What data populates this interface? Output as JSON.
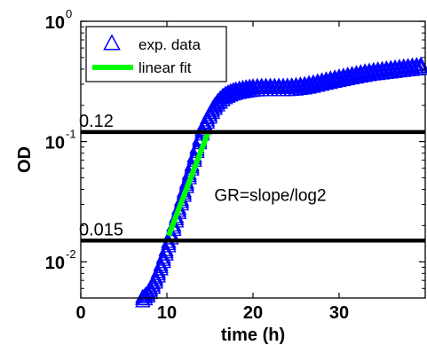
{
  "chart_data": {
    "type": "scatter",
    "title": "",
    "xlabel": "time (h)",
    "ylabel": "OD",
    "xlim": [
      0,
      40
    ],
    "ylim": [
      0.005,
      1
    ],
    "y_scale": "log",
    "grid": false,
    "legend_position": "top-left",
    "x_ticks": [
      {
        "value": 0,
        "label": "0"
      },
      {
        "value": 10,
        "label": "10"
      },
      {
        "value": 20,
        "label": "20"
      },
      {
        "value": 30,
        "label": "30"
      }
    ],
    "y_ticks": [
      {
        "value": 0.01,
        "base": "10",
        "exp": "-2"
      },
      {
        "value": 0.1,
        "base": "10",
        "exp": "-1"
      },
      {
        "value": 1,
        "base": "10",
        "exp": "0"
      }
    ],
    "series": [
      {
        "name": "exp. data",
        "marker": "triangle-open",
        "color": "#0000ff",
        "x": [
          7.2,
          7.5,
          7.8,
          8.1,
          8.4,
          8.7,
          9.0,
          9.3,
          9.6,
          9.9,
          10.2,
          10.5,
          10.8,
          11.1,
          11.4,
          11.7,
          12.0,
          12.3,
          12.6,
          12.9,
          13.2,
          13.5,
          13.8,
          14.1,
          14.4,
          14.7,
          15.0,
          15.3,
          15.6,
          15.9,
          16.2,
          16.5,
          16.8,
          17.1,
          17.4,
          17.7,
          18.0,
          18.4,
          18.8,
          19.2,
          19.6,
          20.0,
          20.5,
          21.0,
          21.5,
          22.0,
          22.5,
          23.0,
          23.5,
          24.0,
          24.5,
          25.0,
          25.5,
          26.0,
          26.5,
          27.0,
          27.5,
          28.0,
          28.5,
          29.0,
          29.5,
          30.0,
          30.5,
          31.0,
          31.5,
          32.0,
          32.5,
          33.0,
          33.5,
          34.0,
          34.5,
          35.0,
          35.5,
          36.0,
          36.5,
          37.0,
          37.5,
          38.0,
          38.5,
          39.0,
          39.5
        ],
        "y": [
          0.0051,
          0.0053,
          0.0056,
          0.006,
          0.0066,
          0.0073,
          0.0082,
          0.0094,
          0.0108,
          0.0125,
          0.0146,
          0.017,
          0.02,
          0.0235,
          0.0277,
          0.0326,
          0.0385,
          0.0455,
          0.0538,
          0.0636,
          0.0752,
          0.0889,
          0.1051,
          0.1243,
          0.14,
          0.156,
          0.172,
          0.188,
          0.203,
          0.217,
          0.229,
          0.24,
          0.249,
          0.256,
          0.262,
          0.267,
          0.271,
          0.275,
          0.279,
          0.282,
          0.285,
          0.287,
          0.289,
          0.29,
          0.29,
          0.29,
          0.29,
          0.29,
          0.29,
          0.291,
          0.292,
          0.294,
          0.297,
          0.3,
          0.305,
          0.31,
          0.316,
          0.322,
          0.328,
          0.334,
          0.34,
          0.346,
          0.352,
          0.358,
          0.364,
          0.37,
          0.376,
          0.382,
          0.387,
          0.392,
          0.396,
          0.4,
          0.404,
          0.408,
          0.412,
          0.416,
          0.42,
          0.424,
          0.428,
          0.432,
          0.436
        ]
      },
      {
        "name": "linear fit",
        "marker": "line",
        "color": "#00ff00",
        "x": [
          10.2,
          14.8
        ],
        "y": [
          0.0165,
          0.12
        ]
      }
    ],
    "reference_lines": [
      {
        "y": 0.12,
        "label": "0.12"
      },
      {
        "y": 0.015,
        "label": "0.015"
      }
    ],
    "annotations": [
      {
        "text": "GR=slope/log2",
        "x": 15.5,
        "y": 0.032
      }
    ]
  }
}
